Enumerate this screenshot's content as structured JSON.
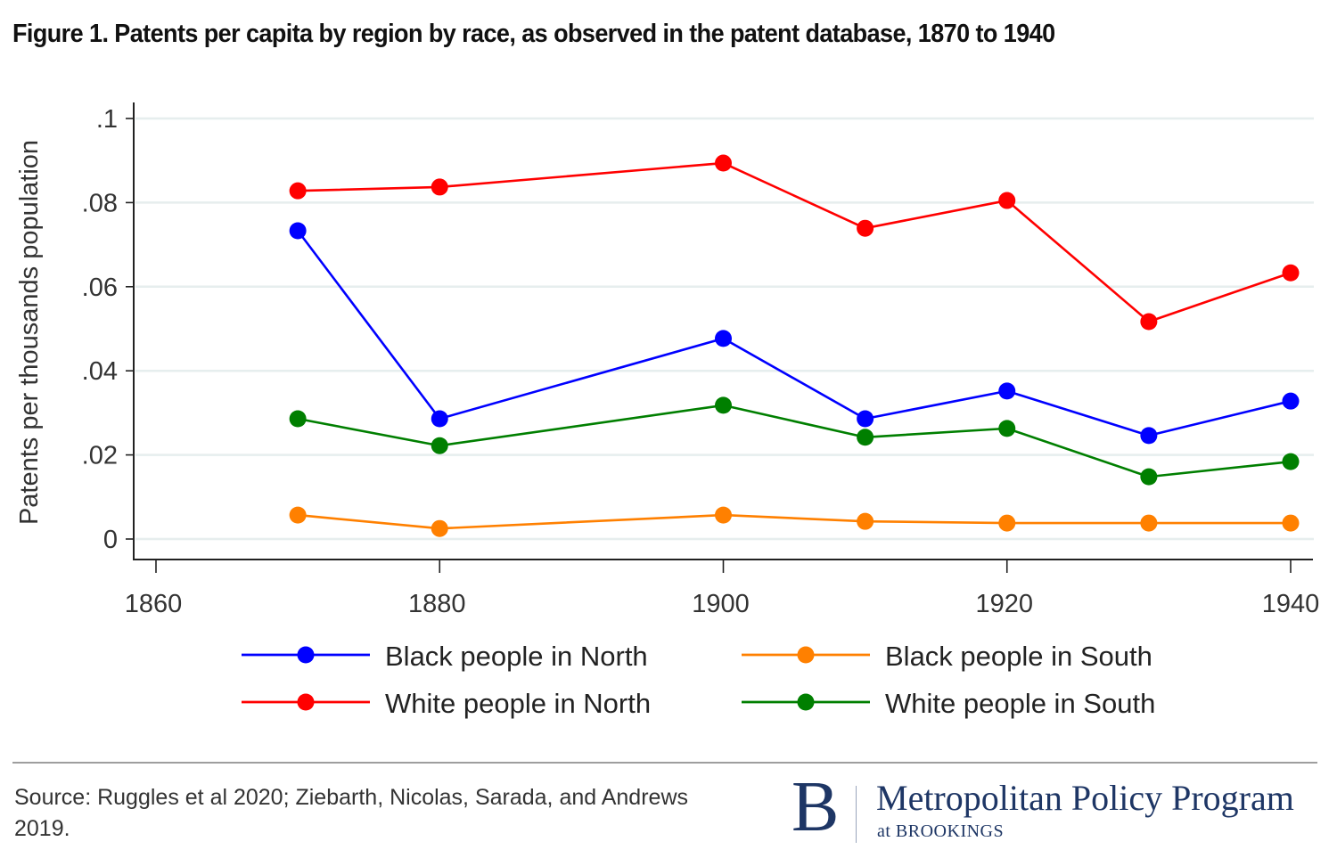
{
  "title": "Figure 1. Patents per capita by region by race, as observed in the patent database, 1870 to 1940",
  "source": "Source: Ruggles et al 2020; Ziebarth, Nicolas, Sarada, and Andrews 2019.",
  "logo": {
    "letter": "B",
    "main": "Metropolitan Policy Program",
    "sub": "at BROOKINGS",
    "color": "#1e3665"
  },
  "chart_data": {
    "type": "line",
    "title": "Figure 1. Patents per capita by region by race, as observed in the patent database, 1870 to 1940",
    "xlabel": "",
    "ylabel": "Patents per thousands population",
    "x": [
      1870,
      1880,
      1900,
      1910,
      1920,
      1930,
      1940
    ],
    "xlim": [
      1860,
      1940
    ],
    "ylim": [
      0,
      0.1
    ],
    "xticks": [
      1860,
      1880,
      1900,
      1920,
      1940
    ],
    "xtick_labels": [
      "1860",
      "1880",
      "1900",
      "1920",
      "1940"
    ],
    "yticks": [
      0,
      0.02,
      0.04,
      0.06,
      0.08,
      0.1
    ],
    "ytick_labels": [
      "0",
      ".02",
      ".04",
      ".06",
      ".08",
      ".1"
    ],
    "grid": true,
    "legend_position": "bottom",
    "series": [
      {
        "name": "Black people in North",
        "color": "#0000ff",
        "values": [
          0.0733,
          0.0286,
          0.0477,
          0.0286,
          0.0352,
          0.0246,
          0.0328
        ]
      },
      {
        "name": "Black people in South",
        "color": "#ff8000",
        "values": [
          0.0057,
          0.0025,
          0.0057,
          0.0042,
          0.0038,
          0.0038,
          0.0038
        ]
      },
      {
        "name": "White people in North",
        "color": "#ff0000",
        "values": [
          0.0828,
          0.0837,
          0.0894,
          0.0739,
          0.0805,
          0.0517,
          0.0633
        ]
      },
      {
        "name": "White people in South",
        "color": "#007f00",
        "values": [
          0.0286,
          0.0222,
          0.0318,
          0.0242,
          0.0263,
          0.0148,
          0.0184
        ]
      }
    ]
  }
}
